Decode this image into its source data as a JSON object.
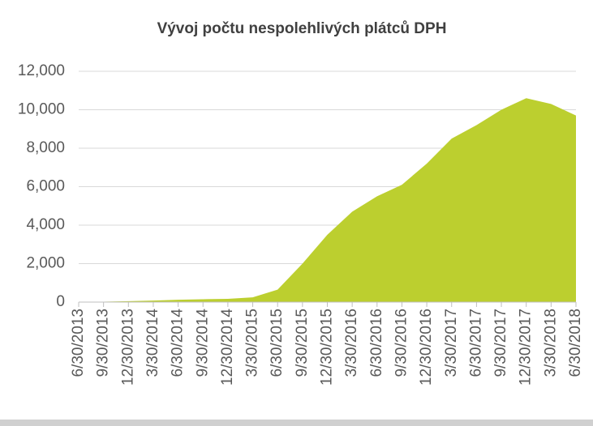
{
  "chart_data": {
    "type": "area",
    "title": "Vývoj počtu nespolehlivých plátců DPH",
    "categories": [
      "6/30/2013",
      "9/30/2013",
      "12/30/2013",
      "3/30/2014",
      "6/30/2014",
      "9/30/2014",
      "12/30/2014",
      "3/30/2015",
      "6/30/2015",
      "9/30/2015",
      "12/30/2015",
      "3/30/2016",
      "6/30/2016",
      "9/30/2016",
      "12/30/2016",
      "3/30/2017",
      "6/30/2017",
      "9/30/2017",
      "12/30/2017",
      "3/30/2018",
      "6/30/2018"
    ],
    "values": [
      0,
      20,
      50,
      80,
      120,
      150,
      170,
      250,
      650,
      2000,
      3500,
      4700,
      5500,
      6100,
      7200,
      8500,
      9200,
      10000,
      10600,
      10300,
      9700
    ],
    "color": "#bccf2f",
    "ylim": [
      0,
      12000
    ],
    "yticks": [
      0,
      {
        "value": 2000,
        "label": "2,000"
      },
      {
        "value": 4000,
        "label": "4,000"
      },
      {
        "value": 6000,
        "label": "6,000"
      },
      {
        "value": 8000,
        "label": "8,000"
      },
      {
        "value": 10000,
        "label": "10,000"
      },
      {
        "value": 12000,
        "label": "12,000"
      }
    ],
    "grid": true
  }
}
